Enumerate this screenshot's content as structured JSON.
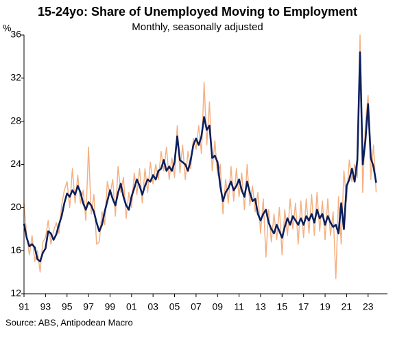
{
  "chart_data": {
    "type": "line",
    "title": "15-24yo: Share of Unemployed Moving to Employment",
    "subtitle": "Monthly, seasonally adjusted",
    "y_label": "%",
    "source": "Source: ABS, Antipodean Macro",
    "xlim": [
      1991,
      2024.8
    ],
    "xticks": [
      {
        "value": 1991,
        "label": "91"
      },
      {
        "value": 1993,
        "label": "93"
      },
      {
        "value": 1995,
        "label": "95"
      },
      {
        "value": 1997,
        "label": "97"
      },
      {
        "value": 1999,
        "label": "99"
      },
      {
        "value": 2001,
        "label": "01"
      },
      {
        "value": 2003,
        "label": "03"
      },
      {
        "value": 2005,
        "label": "05"
      },
      {
        "value": 2007,
        "label": "07"
      },
      {
        "value": 2009,
        "label": "09"
      },
      {
        "value": 2011,
        "label": "11"
      },
      {
        "value": 2013,
        "label": "13"
      },
      {
        "value": 2015,
        "label": "15"
      },
      {
        "value": 2017,
        "label": "17"
      },
      {
        "value": 2019,
        "label": "19"
      },
      {
        "value": 2021,
        "label": "21"
      },
      {
        "value": 2023,
        "label": "23"
      }
    ],
    "ylim": [
      12,
      36
    ],
    "yticks": [
      12,
      16,
      20,
      24,
      28,
      32,
      36
    ],
    "grid": false,
    "x": [
      1991,
      1991.25,
      1991.5,
      1991.75,
      1992,
      1992.25,
      1992.5,
      1992.75,
      1993,
      1993.25,
      1993.5,
      1993.75,
      1994,
      1994.25,
      1994.5,
      1994.75,
      1995,
      1995.25,
      1995.5,
      1995.75,
      1996,
      1996.25,
      1996.5,
      1996.75,
      1997,
      1997.25,
      1997.5,
      1997.75,
      1998,
      1998.25,
      1998.5,
      1998.75,
      1999,
      1999.25,
      1999.5,
      1999.75,
      2000,
      2000.25,
      2000.5,
      2000.75,
      2001,
      2001.25,
      2001.5,
      2001.75,
      2002,
      2002.25,
      2002.5,
      2002.75,
      2003,
      2003.25,
      2003.5,
      2003.75,
      2004,
      2004.25,
      2004.5,
      2004.75,
      2005,
      2005.25,
      2005.5,
      2005.75,
      2006,
      2006.25,
      2006.5,
      2006.75,
      2007,
      2007.25,
      2007.5,
      2007.75,
      2008,
      2008.25,
      2008.5,
      2008.75,
      2009,
      2009.25,
      2009.5,
      2009.75,
      2010,
      2010.25,
      2010.5,
      2010.75,
      2011,
      2011.25,
      2011.5,
      2011.75,
      2012,
      2012.25,
      2012.5,
      2012.75,
      2013,
      2013.25,
      2013.5,
      2013.75,
      2014,
      2014.25,
      2014.5,
      2014.75,
      2015,
      2015.25,
      2015.5,
      2015.75,
      2016,
      2016.25,
      2016.5,
      2016.75,
      2017,
      2017.25,
      2017.5,
      2017.75,
      2018,
      2018.25,
      2018.5,
      2018.75,
      2019,
      2019.25,
      2019.5,
      2019.75,
      2020,
      2020.25,
      2020.5,
      2020.75,
      2021,
      2021.25,
      2021.5,
      2021.75,
      2022,
      2022.25,
      2022.5,
      2022.75,
      2023,
      2023.25,
      2023.5,
      2023.75
    ],
    "series": [
      {
        "color": "#f4b183",
        "width": 1.5,
        "values": [
          20.4,
          17.4,
          15.6,
          17.4,
          15.0,
          16.0,
          14.0,
          16.8,
          17.2,
          18.8,
          16.6,
          17.8,
          18.6,
          17.6,
          20.2,
          21.6,
          22.4,
          20.0,
          23.6,
          20.4,
          23.0,
          20.4,
          21.6,
          18.8,
          25.6,
          19.4,
          21.2,
          16.6,
          16.8,
          19.6,
          18.4,
          22.4,
          21.2,
          22.6,
          19.2,
          23.8,
          21.4,
          22.8,
          19.0,
          21.4,
          20.0,
          23.2,
          21.2,
          23.6,
          20.4,
          23.6,
          21.4,
          24.2,
          22.2,
          24.0,
          22.6,
          25.2,
          23.4,
          25.6,
          22.6,
          24.6,
          22.8,
          27.6,
          23.2,
          25.8,
          22.6,
          25.2,
          23.6,
          26.4,
          25.4,
          27.6,
          25.0,
          31.6,
          25.8,
          29.8,
          23.4,
          26.2,
          23.0,
          24.0,
          19.4,
          22.6,
          20.4,
          23.8,
          20.6,
          23.6,
          21.0,
          23.2,
          19.8,
          24.0,
          20.2,
          22.0,
          19.6,
          21.4,
          17.6,
          20.8,
          15.4,
          19.8,
          16.8,
          19.4,
          17.0,
          20.0,
          15.6,
          19.8,
          17.4,
          20.8,
          18.0,
          20.4,
          16.6,
          20.6,
          17.2,
          20.8,
          17.6,
          21.2,
          17.4,
          21.4,
          17.8,
          20.6,
          17.0,
          20.8,
          17.4,
          19.6,
          13.4,
          21.0,
          16.6,
          23.4,
          20.6,
          24.4,
          22.4,
          24.0,
          22.8,
          36.0,
          21.4,
          27.8,
          30.4,
          22.6,
          25.8,
          21.4
        ]
      },
      {
        "color": "#0b1f5c",
        "width": 2.6,
        "values": [
          18.5,
          17.2,
          16.4,
          16.6,
          16.3,
          15.2,
          15.0,
          15.8,
          16.2,
          17.8,
          17.6,
          17.0,
          17.5,
          18.4,
          19.2,
          20.4,
          21.3,
          21.0,
          21.6,
          21.2,
          22.0,
          21.4,
          20.4,
          19.8,
          20.5,
          20.2,
          19.6,
          18.6,
          17.8,
          18.4,
          19.6,
          20.6,
          21.6,
          20.8,
          20.2,
          21.4,
          22.2,
          21.0,
          20.2,
          19.8,
          21.0,
          21.8,
          22.6,
          22.0,
          21.2,
          22.0,
          22.6,
          22.4,
          23.0,
          22.6,
          23.4,
          23.6,
          24.4,
          23.4,
          23.8,
          23.4,
          24.2,
          26.6,
          24.4,
          24.2,
          24.0,
          23.4,
          24.4,
          25.8,
          26.4,
          25.8,
          26.6,
          28.4,
          27.2,
          27.6,
          24.6,
          24.8,
          24.2,
          22.0,
          20.6,
          21.4,
          21.8,
          22.4,
          21.6,
          22.0,
          22.6,
          21.6,
          21.0,
          22.4,
          21.4,
          20.6,
          20.8,
          19.4,
          18.8,
          19.4,
          19.8,
          18.6,
          18.0,
          17.6,
          18.4,
          17.8,
          17.2,
          18.2,
          19.0,
          18.4,
          19.2,
          18.8,
          18.4,
          19.0,
          18.4,
          19.2,
          18.8,
          19.4,
          18.6,
          19.8,
          19.0,
          19.4,
          18.4,
          19.2,
          18.6,
          18.2,
          18.4,
          17.6,
          20.4,
          18.0,
          22.0,
          22.6,
          23.6,
          22.4,
          24.4,
          34.4,
          24.0,
          26.2,
          29.6,
          24.6,
          23.8,
          22.3
        ]
      }
    ]
  }
}
